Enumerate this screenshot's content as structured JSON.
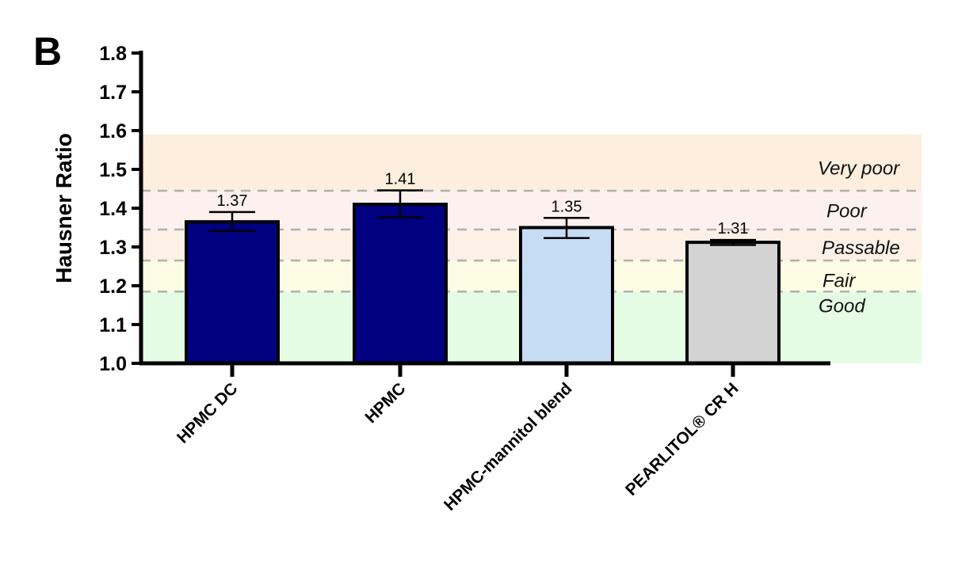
{
  "panel_label": "B",
  "chart_data": {
    "type": "bar",
    "title": "",
    "xlabel": "",
    "ylabel": "Hausner Ratio",
    "ylim": [
      1.0,
      1.8
    ],
    "yticks": [
      "1.0",
      "1.1",
      "1.2",
      "1.3",
      "1.4",
      "1.5",
      "1.6",
      "1.7",
      "1.8"
    ],
    "categories": [
      "HPMC DC",
      "HPMC",
      "HPMC-mannitol blend",
      "PEARLITOL® CR H"
    ],
    "values": [
      1.365,
      1.41,
      1.35,
      1.312
    ],
    "value_labels": [
      "1.37",
      "1.41",
      "1.35",
      "1.31"
    ],
    "error_low": [
      1.342,
      1.376,
      1.323,
      1.305
    ],
    "error_high": [
      1.39,
      1.446,
      1.375,
      1.318
    ],
    "bar_colors": [
      "#000080",
      "#000080",
      "#c6dcf5",
      "#d3d3d3"
    ],
    "bands": [
      {
        "label": "Good",
        "from": 1.0,
        "to": 1.185,
        "color": "#e4fce4"
      },
      {
        "label": "Fair",
        "from": 1.185,
        "to": 1.265,
        "color": "#fdfde4"
      },
      {
        "label": "Passable",
        "from": 1.265,
        "to": 1.345,
        "color": "#fdf0e6"
      },
      {
        "label": "Poor",
        "from": 1.345,
        "to": 1.445,
        "color": "#fdf1ef"
      },
      {
        "label": "Very poor",
        "from": 1.445,
        "to": 1.59,
        "color": "#fdeede"
      }
    ],
    "threshold_lines": [
      1.185,
      1.265,
      1.345,
      1.445
    ],
    "grid": false
  }
}
